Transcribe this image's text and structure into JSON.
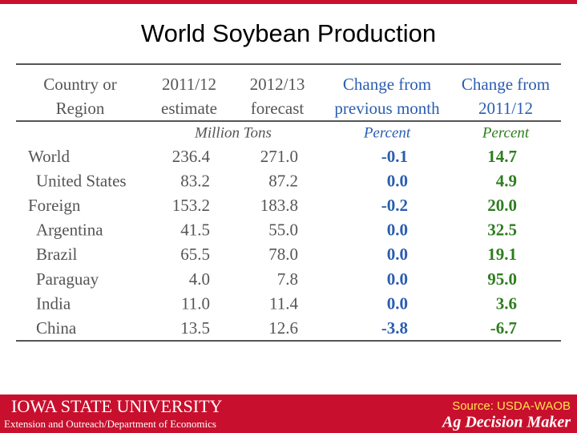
{
  "title": "World Soybean Production",
  "table": {
    "header": [
      [
        "Country or",
        "Region"
      ],
      [
        "2011/12",
        "estimate"
      ],
      [
        "2012/13",
        "forecast"
      ],
      [
        "Change from",
        "previous month"
      ],
      [
        "Change from",
        "2011/12"
      ]
    ],
    "units": [
      "Million Tons",
      "Percent",
      "Percent"
    ],
    "rows": [
      [
        "World",
        "236.4",
        "271.0",
        "-0.1",
        "14.7"
      ],
      [
        "United States",
        "83.2",
        "87.2",
        "0.0",
        "4.9"
      ],
      [
        "Foreign",
        "153.2",
        "183.8",
        "-0.2",
        "20.0"
      ],
      [
        "Argentina",
        "41.5",
        "55.0",
        "0.0",
        "32.5"
      ],
      [
        "Brazil",
        "65.5",
        "78.0",
        "0.0",
        "19.1"
      ],
      [
        "Paraguay",
        "4.0",
        "7.8",
        "0.0",
        "95.0"
      ],
      [
        "India",
        "11.0",
        "11.4",
        "0.0",
        "3.6"
      ],
      [
        "China",
        "13.5",
        "12.6",
        "-3.8",
        "-6.7"
      ]
    ]
  },
  "footer": {
    "university": "Iowa State University",
    "department": "Extension and Outreach/Department of Economics",
    "source": "Source: USDA-WAOB",
    "brand": "Ag Decision Maker"
  }
}
